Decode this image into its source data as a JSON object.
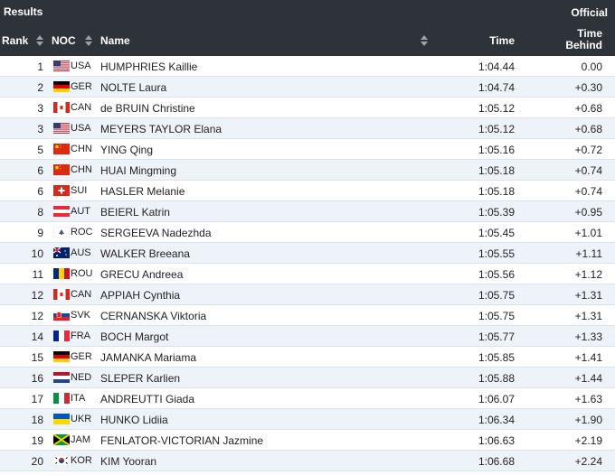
{
  "header": {
    "title": "Results",
    "status": "Official"
  },
  "table": {
    "columns": [
      "Rank",
      "NOC",
      "Name",
      "Time",
      "Time Behind"
    ],
    "rows": [
      [
        1,
        "USA",
        "HUMPHRIES Kaillie",
        "1:04.44",
        "0.00"
      ],
      [
        2,
        "GER",
        "NOLTE Laura",
        "1:04.74",
        "+0.30"
      ],
      [
        3,
        "CAN",
        "de BRUIN Christine",
        "1:05.12",
        "+0.68"
      ],
      [
        3,
        "USA",
        "MEYERS TAYLOR Elana",
        "1:05.12",
        "+0.68"
      ],
      [
        5,
        "CHN",
        "YING Qing",
        "1:05.16",
        "+0.72"
      ],
      [
        6,
        "CHN",
        "HUAI Mingming",
        "1:05.18",
        "+0.74"
      ],
      [
        6,
        "SUI",
        "HASLER Melanie",
        "1:05.18",
        "+0.74"
      ],
      [
        8,
        "AUT",
        "BEIERL Katrin",
        "1:05.39",
        "+0.95"
      ],
      [
        9,
        "ROC",
        "SERGEEVA Nadezhda",
        "1:05.45",
        "+1.01"
      ],
      [
        10,
        "AUS",
        "WALKER Breeana",
        "1:05.55",
        "+1.11"
      ],
      [
        11,
        "ROU",
        "GRECU Andreea",
        "1:05.56",
        "+1.12"
      ],
      [
        12,
        "CAN",
        "APPIAH Cynthia",
        "1:05.75",
        "+1.31"
      ],
      [
        12,
        "SVK",
        "CERNANSKA Viktoria",
        "1:05.75",
        "+1.31"
      ],
      [
        14,
        "FRA",
        "BOCH Margot",
        "1:05.77",
        "+1.33"
      ],
      [
        15,
        "GER",
        "JAMANKA Mariama",
        "1:05.85",
        "+1.41"
      ],
      [
        16,
        "NED",
        "SLEPER Karlien",
        "1:05.88",
        "+1.44"
      ],
      [
        17,
        "ITA",
        "ANDREUTTI Giada",
        "1:06.07",
        "+1.63"
      ],
      [
        18,
        "UKR",
        "HUNKO Lidiia",
        "1:06.34",
        "+1.90"
      ],
      [
        19,
        "JAM",
        "FENLATOR-VICTORIAN Jazmine",
        "1:06.63",
        "+2.19"
      ],
      [
        20,
        "KOR",
        "KIM Yooran",
        "1:06.68",
        "+2.24"
      ]
    ]
  }
}
